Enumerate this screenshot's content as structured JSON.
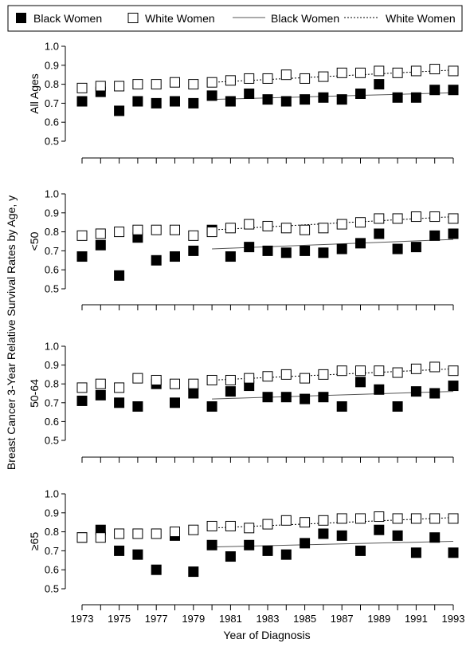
{
  "legend": {
    "items": [
      {
        "label": "Black Women",
        "kind": "filled-square"
      },
      {
        "label": "White Women",
        "kind": "open-square"
      },
      {
        "label": "Black Women",
        "kind": "solid-line"
      },
      {
        "label": "White Women",
        "kind": "dotted-line"
      }
    ]
  },
  "axes": {
    "ylabel": "Breast Cancer 3-Year Relative Survival Rates by Age, y",
    "xlabel": "Year of Diagnosis"
  },
  "colors": {
    "ink": "#000000",
    "line": "#555555",
    "open_fill": "#ffffff"
  },
  "chart_data": [
    {
      "type": "scatter",
      "panel_label": "All Ages",
      "ylim": [
        0.5,
        1.0
      ],
      "yticks": [
        "0.5",
        "0.6",
        "0.7",
        "0.8",
        "0.9",
        "1.0"
      ],
      "x": [
        1973,
        1974,
        1975,
        1976,
        1977,
        1978,
        1979,
        1980,
        1981,
        1982,
        1983,
        1984,
        1985,
        1986,
        1987,
        1988,
        1989,
        1990,
        1991,
        1992,
        1993
      ],
      "xticks": [
        "1973",
        "1975",
        "1977",
        "1979",
        "1981",
        "1983",
        "1985",
        "1987",
        "1989",
        "1991",
        "1993"
      ],
      "series": [
        {
          "name": "Black Women",
          "marker": "filled-square",
          "values": [
            0.71,
            0.76,
            0.66,
            0.71,
            0.7,
            0.71,
            0.7,
            0.74,
            0.71,
            0.75,
            0.72,
            0.71,
            0.72,
            0.73,
            0.72,
            0.75,
            0.8,
            0.73,
            0.73,
            0.77,
            0.77
          ]
        },
        {
          "name": "White Women",
          "marker": "open-square",
          "values": [
            0.78,
            0.79,
            0.79,
            0.8,
            0.8,
            0.81,
            0.8,
            0.81,
            0.82,
            0.83,
            0.83,
            0.85,
            0.83,
            0.84,
            0.86,
            0.86,
            0.87,
            0.86,
            0.87,
            0.88,
            0.87
          ]
        }
      ],
      "trend_lines": [
        {
          "name": "Black Women",
          "style": "solid",
          "x": [
            1980,
            1993
          ],
          "y": [
            0.72,
            0.755
          ]
        },
        {
          "name": "White Women",
          "style": "dotted",
          "x": [
            1980,
            1993
          ],
          "y": [
            0.81,
            0.875
          ]
        }
      ]
    },
    {
      "type": "scatter",
      "panel_label": "<50",
      "ylim": [
        0.5,
        1.0
      ],
      "yticks": [
        "0.5",
        "0.6",
        "0.7",
        "0.8",
        "0.9",
        "1.0"
      ],
      "x": [
        1973,
        1974,
        1975,
        1976,
        1977,
        1978,
        1979,
        1980,
        1981,
        1982,
        1983,
        1984,
        1985,
        1986,
        1987,
        1988,
        1989,
        1990,
        1991,
        1992,
        1993
      ],
      "xticks": [
        "1973",
        "1975",
        "1977",
        "1979",
        "1981",
        "1983",
        "1985",
        "1987",
        "1989",
        "1991",
        "1993"
      ],
      "series": [
        {
          "name": "Black Women",
          "marker": "filled-square",
          "values": [
            0.67,
            0.73,
            0.57,
            0.77,
            0.65,
            0.67,
            0.7,
            0.81,
            0.67,
            0.72,
            0.7,
            0.69,
            0.7,
            0.69,
            0.71,
            0.74,
            0.79,
            0.71,
            0.72,
            0.78,
            0.79
          ]
        },
        {
          "name": "White Women",
          "marker": "open-square",
          "values": [
            0.78,
            0.79,
            0.8,
            0.81,
            0.81,
            0.81,
            0.78,
            0.8,
            0.82,
            0.84,
            0.83,
            0.82,
            0.81,
            0.82,
            0.84,
            0.85,
            0.87,
            0.87,
            0.88,
            0.88,
            0.87
          ]
        }
      ],
      "trend_lines": [
        {
          "name": "Black Women",
          "style": "solid",
          "x": [
            1980,
            1993
          ],
          "y": [
            0.71,
            0.76
          ]
        },
        {
          "name": "White Women",
          "style": "dotted",
          "x": [
            1980,
            1993
          ],
          "y": [
            0.81,
            0.88
          ]
        }
      ]
    },
    {
      "type": "scatter",
      "panel_label": "50-64",
      "ylim": [
        0.5,
        1.0
      ],
      "yticks": [
        "0.5",
        "0.6",
        "0.7",
        "0.8",
        "0.9",
        "1.0"
      ],
      "x": [
        1973,
        1974,
        1975,
        1976,
        1977,
        1978,
        1979,
        1980,
        1981,
        1982,
        1983,
        1984,
        1985,
        1986,
        1987,
        1988,
        1989,
        1990,
        1991,
        1992,
        1993
      ],
      "xticks": [
        "1973",
        "1975",
        "1977",
        "1979",
        "1981",
        "1983",
        "1985",
        "1987",
        "1989",
        "1991",
        "1993"
      ],
      "series": [
        {
          "name": "Black Women",
          "marker": "filled-square",
          "values": [
            0.71,
            0.74,
            0.7,
            0.68,
            0.8,
            0.7,
            0.75,
            0.68,
            0.76,
            0.79,
            0.73,
            0.73,
            0.72,
            0.73,
            0.68,
            0.81,
            0.77,
            0.68,
            0.76,
            0.75,
            0.79
          ]
        },
        {
          "name": "White Women",
          "marker": "open-square",
          "values": [
            0.78,
            0.8,
            0.78,
            0.83,
            0.82,
            0.8,
            0.8,
            0.82,
            0.82,
            0.83,
            0.84,
            0.85,
            0.83,
            0.85,
            0.87,
            0.87,
            0.87,
            0.86,
            0.88,
            0.89,
            0.87
          ]
        }
      ],
      "trend_lines": [
        {
          "name": "Black Women",
          "style": "solid",
          "x": [
            1980,
            1993
          ],
          "y": [
            0.72,
            0.76
          ]
        },
        {
          "name": "White Women",
          "style": "dotted",
          "x": [
            1980,
            1993
          ],
          "y": [
            0.82,
            0.88
          ]
        }
      ]
    },
    {
      "type": "scatter",
      "panel_label": "≥65",
      "ylim": [
        0.5,
        1.0
      ],
      "yticks": [
        "0.5",
        "0.6",
        "0.7",
        "0.8",
        "0.9",
        "1.0"
      ],
      "x": [
        1973,
        1974,
        1975,
        1976,
        1977,
        1978,
        1979,
        1980,
        1981,
        1982,
        1983,
        1984,
        1985,
        1986,
        1987,
        1988,
        1989,
        1990,
        1991,
        1992,
        1993
      ],
      "xticks": [
        "1973",
        "1975",
        "1977",
        "1979",
        "1981",
        "1983",
        "1985",
        "1987",
        "1989",
        "1991",
        "1993"
      ],
      "series": [
        {
          "name": "Black Women",
          "marker": "filled-square",
          "values": [
            0.77,
            0.81,
            0.7,
            0.68,
            0.6,
            0.78,
            0.59,
            0.73,
            0.67,
            0.73,
            0.7,
            0.68,
            0.74,
            0.79,
            0.78,
            0.7,
            0.81,
            0.78,
            0.69,
            0.77,
            0.69
          ]
        },
        {
          "name": "White Women",
          "marker": "open-square",
          "values": [
            0.77,
            0.77,
            0.79,
            0.79,
            0.79,
            0.8,
            0.81,
            0.83,
            0.83,
            0.82,
            0.84,
            0.86,
            0.85,
            0.86,
            0.87,
            0.87,
            0.88,
            0.87,
            0.87,
            0.87,
            0.87
          ]
        }
      ],
      "trend_lines": [
        {
          "name": "Black Women",
          "style": "solid",
          "x": [
            1980,
            1993
          ],
          "y": [
            0.72,
            0.75
          ]
        },
        {
          "name": "White Women",
          "style": "dotted",
          "x": [
            1980,
            1993
          ],
          "y": [
            0.82,
            0.875
          ]
        }
      ]
    }
  ]
}
